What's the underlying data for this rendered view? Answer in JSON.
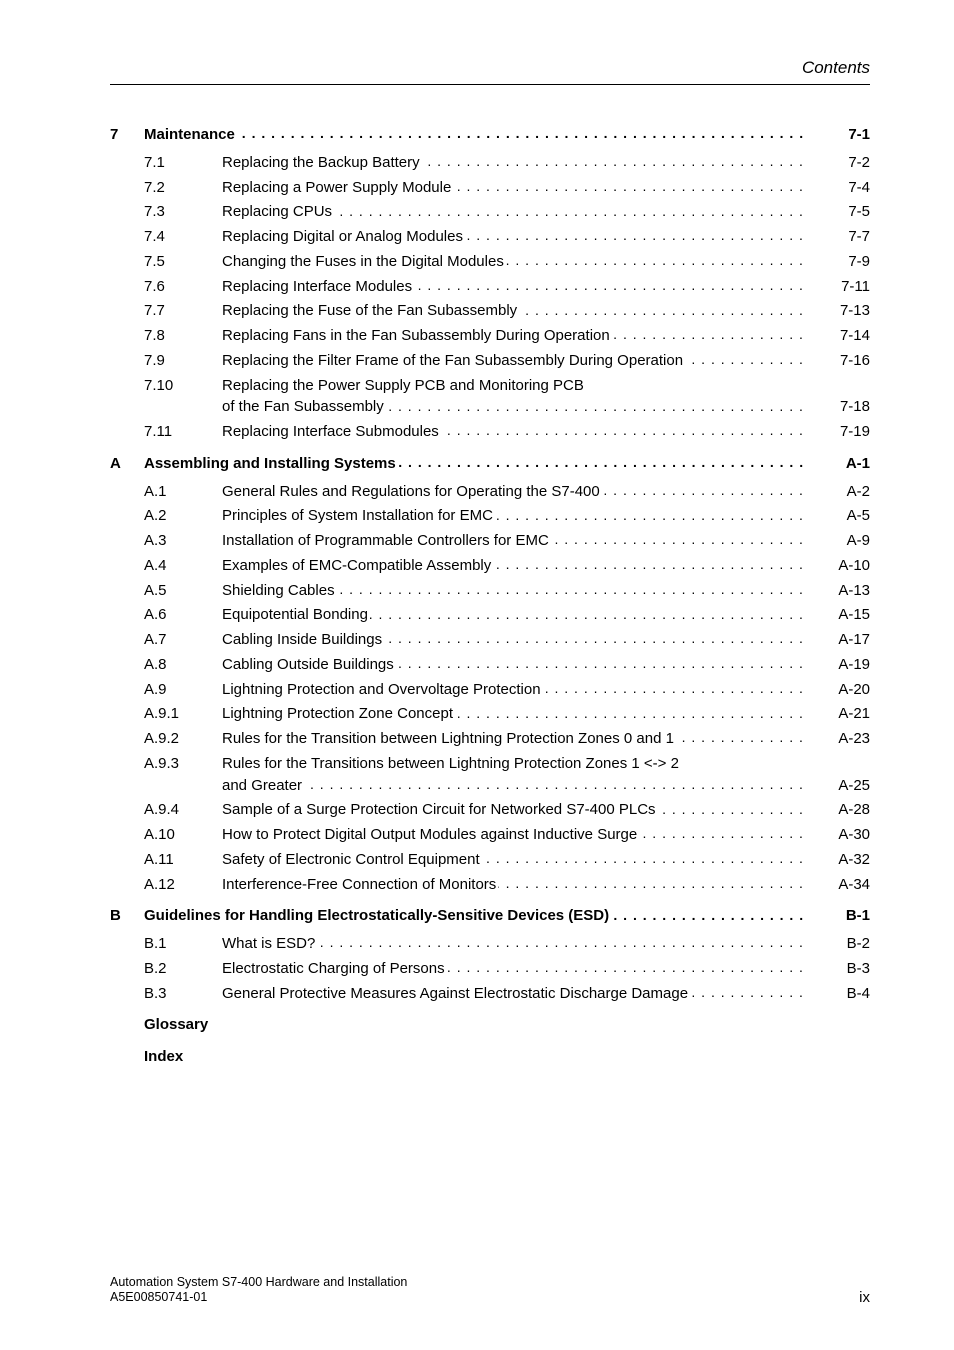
{
  "header": {
    "right": "Contents"
  },
  "toc": [
    {
      "type": "chapter",
      "chap": "7",
      "title": "Maintenance",
      "page": "7-1"
    },
    {
      "type": "entry",
      "num": "7.1",
      "title": "Replacing the Backup Battery",
      "page": "7-2"
    },
    {
      "type": "entry",
      "num": "7.2",
      "title": "Replacing a Power Supply Module",
      "page": "7-4"
    },
    {
      "type": "entry",
      "num": "7.3",
      "title": "Replacing CPUs",
      "page": "7-5"
    },
    {
      "type": "entry",
      "num": "7.4",
      "title": "Replacing Digital or Analog Modules",
      "page": "7-7"
    },
    {
      "type": "entry",
      "num": "7.5",
      "title": "Changing the Fuses in the Digital Modules",
      "page": "7-9"
    },
    {
      "type": "entry",
      "num": "7.6",
      "title": "Replacing Interface Modules",
      "page": "7-11"
    },
    {
      "type": "entry",
      "num": "7.7",
      "title": "Replacing the Fuse of the Fan Subassembly",
      "page": "7-13"
    },
    {
      "type": "entry",
      "num": "7.8",
      "title": "Replacing Fans in the Fan Subassembly During Operation",
      "page": "7-14"
    },
    {
      "type": "entry",
      "num": "7.9",
      "title": "Replacing the Filter Frame of the Fan Subassembly During Operation",
      "page": "7-16"
    },
    {
      "type": "entry-multiline",
      "num": "7.10",
      "line1": "Replacing the Power Supply PCB and Monitoring PCB",
      "line2": "of the Fan Subassembly",
      "page": "7-18"
    },
    {
      "type": "entry",
      "num": "7.11",
      "title": "Replacing Interface Submodules",
      "page": "7-19"
    },
    {
      "type": "chapter",
      "chap": "A",
      "title": "Assembling and Installing Systems",
      "page": "A-1"
    },
    {
      "type": "entry",
      "num": "A.1",
      "title": "General Rules and Regulations for Operating the S7-400",
      "page": "A-2"
    },
    {
      "type": "entry",
      "num": "A.2",
      "title": "Principles of System Installation for EMC",
      "page": "A-5"
    },
    {
      "type": "entry",
      "num": "A.3",
      "title": "Installation of Programmable Controllers for EMC",
      "page": "A-9"
    },
    {
      "type": "entry",
      "num": "A.4",
      "title": "Examples of EMC-Compatible Assembly",
      "page": "A-10"
    },
    {
      "type": "entry",
      "num": "A.5",
      "title": "Shielding Cables",
      "page": "A-13"
    },
    {
      "type": "entry",
      "num": "A.6",
      "title": "Equipotential Bonding",
      "page": "A-15"
    },
    {
      "type": "entry",
      "num": "A.7",
      "title": "Cabling Inside Buildings",
      "page": "A-17"
    },
    {
      "type": "entry",
      "num": "A.8",
      "title": "Cabling Outside Buildings",
      "page": "A-19"
    },
    {
      "type": "entry",
      "num": "A.9",
      "title": "Lightning Protection and Overvoltage Protection",
      "page": "A-20"
    },
    {
      "type": "entry",
      "num": "A.9.1",
      "title": "Lightning Protection Zone Concept",
      "page": "A-21"
    },
    {
      "type": "entry",
      "num": "A.9.2",
      "title": "Rules for the Transition between Lightning Protection Zones 0 and 1",
      "page": "A-23"
    },
    {
      "type": "entry-multiline",
      "num": "A.9.3",
      "line1": "Rules for the Transitions between Lightning Protection Zones 1 <-> 2",
      "line2": "and Greater",
      "page": "A-25"
    },
    {
      "type": "entry",
      "num": "A.9.4",
      "title": "Sample of a Surge Protection Circuit for Networked S7-400 PLCs",
      "page": "A-28"
    },
    {
      "type": "entry",
      "num": "A.10",
      "title": "How to Protect Digital Output Modules against Inductive Surge",
      "page": "A-30"
    },
    {
      "type": "entry",
      "num": "A.11",
      "title": "Safety of Electronic Control Equipment",
      "page": "A-32"
    },
    {
      "type": "entry",
      "num": "A.12",
      "title": "Interference-Free Connection of Monitors",
      "page": "A-34"
    },
    {
      "type": "chapter",
      "chap": "B",
      "title": "Guidelines for Handling Electrostatically-Sensitive Devices (ESD)",
      "page": "B-1"
    },
    {
      "type": "entry",
      "num": "B.1",
      "title": "What is ESD?",
      "page": "B-2"
    },
    {
      "type": "entry",
      "num": "B.2",
      "title": "Electrostatic Charging of Persons",
      "page": "B-3"
    },
    {
      "type": "entry",
      "num": "B.3",
      "title": "General Protective Measures Against Electrostatic Discharge Damage",
      "page": "B-4"
    },
    {
      "type": "plain",
      "label": "Glossary"
    },
    {
      "type": "plain",
      "label": "Index"
    }
  ],
  "footer": {
    "line1": "Automation System S7-400  Hardware and Installation",
    "line2": "A5E00850741-01",
    "pageNum": "ix"
  }
}
